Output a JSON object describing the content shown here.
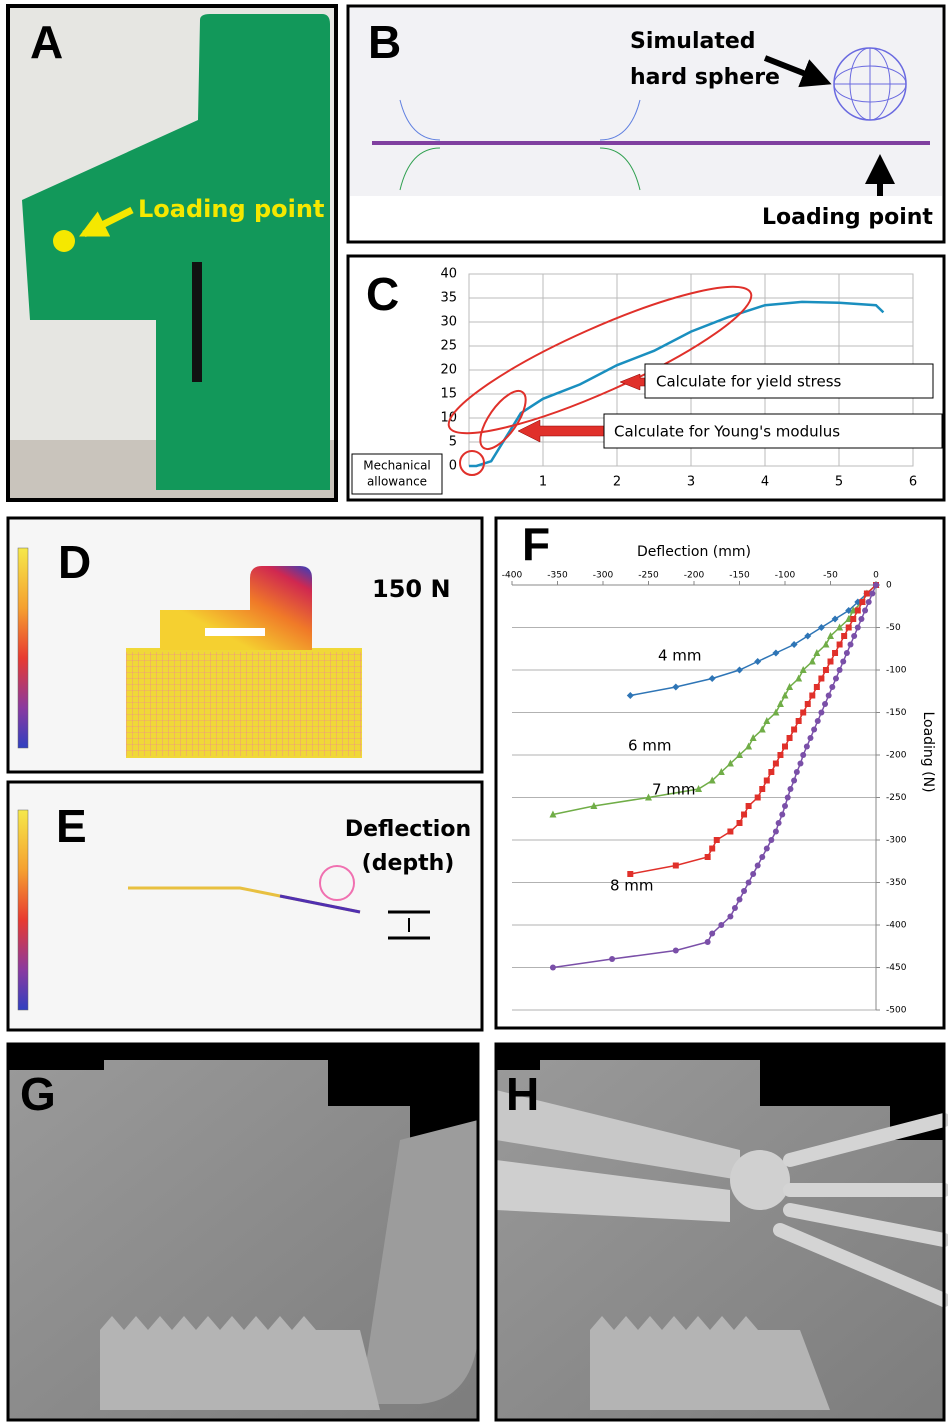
{
  "panels": {
    "A": {
      "label": "A",
      "annotation": "Loading point"
    },
    "B": {
      "label": "B",
      "annotation": [
        "Simulated",
        "hard sphere"
      ],
      "loading": "Loading point"
    },
    "C": {
      "label": "C"
    },
    "D": {
      "label": "D",
      "annotation": "150 N"
    },
    "E": {
      "label": "E",
      "annotation": [
        "Deflection",
        "(depth)"
      ]
    },
    "F": {
      "label": "F"
    },
    "G": {
      "label": "G"
    },
    "H": {
      "label": "H"
    }
  },
  "chart_data": [
    {
      "type": "line",
      "color": "#1a8fbf",
      "grid": true,
      "x": [
        0,
        0.1,
        0.3,
        0.5,
        0.7,
        1,
        1.5,
        2,
        2.5,
        3,
        3.5,
        4,
        4.5,
        5,
        5.5,
        5.6
      ],
      "values": [
        0,
        0,
        1,
        6,
        11,
        14,
        17,
        21,
        24,
        28,
        31,
        33.5,
        34.2,
        34,
        33.5,
        32
      ],
      "xlim": [
        0,
        6
      ],
      "xticks": [
        1,
        2,
        3,
        4,
        5,
        6
      ],
      "ylim": [
        0,
        40
      ],
      "yticks": [
        0,
        5,
        10,
        15,
        20,
        25,
        30,
        35,
        40
      ],
      "annotations": [
        "Calculate for yield stress",
        "Calculate for Young's modulus",
        [
          "Mechanical",
          "allowance"
        ]
      ]
    },
    {
      "type": "line",
      "x_label": "Deflection (mm)",
      "y_label": "Loading (N)",
      "grid": "y",
      "xlim": [
        -400,
        0
      ],
      "xticks": [
        -400,
        -350,
        -300,
        -250,
        -200,
        -150,
        -100,
        -50,
        0
      ],
      "ylim": [
        -500,
        0
      ],
      "yticks": [
        0,
        -50,
        -100,
        -150,
        -200,
        -250,
        -300,
        -350,
        -400,
        -450,
        -500
      ],
      "series": [
        {
          "name": "4 mm",
          "color": "#2e75b6",
          "marker": "diamond",
          "x": [
            -270,
            -220,
            -180,
            -150,
            -130,
            -110,
            -90,
            -75,
            -60,
            -45,
            -30,
            -20,
            -10,
            0
          ],
          "values": [
            -130,
            -120,
            -110,
            -100,
            -90,
            -80,
            -70,
            -60,
            -50,
            -40,
            -30,
            -20,
            -10,
            0
          ]
        },
        {
          "name": "6 mm",
          "color": "#70ad47",
          "marker": "triangle",
          "x": [
            -355,
            -310,
            -250,
            -195,
            -180,
            -170,
            -160,
            -150,
            -140,
            -135,
            -125,
            -120,
            -110,
            -105,
            -100,
            -95,
            -85,
            -80,
            -70,
            -65,
            -55,
            -50,
            -40,
            -30,
            -25,
            -15,
            -10,
            0
          ],
          "values": [
            -270,
            -260,
            -250,
            -240,
            -230,
            -220,
            -210,
            -200,
            -190,
            -180,
            -170,
            -160,
            -150,
            -140,
            -130,
            -120,
            -110,
            -100,
            -90,
            -80,
            -70,
            -60,
            -50,
            -40,
            -30,
            -20,
            -10,
            0
          ]
        },
        {
          "name": "7 mm",
          "color": "#e0302a",
          "marker": "square",
          "x": [
            -270,
            -220,
            -185,
            -180,
            -175,
            -160,
            -150,
            -145,
            -140,
            -130,
            -125,
            -120,
            -115,
            -110,
            -105,
            -100,
            -95,
            -90,
            -85,
            -80,
            -75,
            -70,
            -65,
            -60,
            -55,
            -50,
            -45,
            -40,
            -35,
            -30,
            -25,
            -20,
            -15,
            -10,
            0
          ],
          "values": [
            -340,
            -330,
            -320,
            -310,
            -300,
            -290,
            -280,
            -270,
            -260,
            -250,
            -240,
            -230,
            -220,
            -210,
            -200,
            -190,
            -180,
            -170,
            -160,
            -150,
            -140,
            -130,
            -120,
            -110,
            -100,
            -90,
            -80,
            -70,
            -60,
            -50,
            -40,
            -30,
            -20,
            -10,
            0
          ]
        },
        {
          "name": "8 mm",
          "color": "#7a4fa8",
          "marker": "circle",
          "x": [
            -355,
            -290,
            -220,
            -185,
            -180,
            -170,
            -160,
            -155,
            -150,
            -145,
            -140,
            -135,
            -130,
            -125,
            -120,
            -115,
            -110,
            -107,
            -103,
            -100,
            -97,
            -94,
            -90,
            -87,
            -83,
            -80,
            -76,
            -72,
            -68,
            -64,
            -60,
            -56,
            -52,
            -48,
            -44,
            -40,
            -36,
            -32,
            -28,
            -24,
            -20,
            -16,
            -12,
            -8,
            -4,
            0
          ],
          "values": [
            -450,
            -440,
            -430,
            -420,
            -410,
            -400,
            -390,
            -380,
            -370,
            -360,
            -350,
            -340,
            -330,
            -320,
            -310,
            -300,
            -290,
            -280,
            -270,
            -260,
            -250,
            -240,
            -230,
            -220,
            -210,
            -200,
            -190,
            -180,
            -170,
            -160,
            -150,
            -140,
            -130,
            -120,
            -110,
            -100,
            -90,
            -80,
            -70,
            -60,
            -50,
            -40,
            -30,
            -20,
            -10,
            0
          ]
        }
      ]
    }
  ]
}
